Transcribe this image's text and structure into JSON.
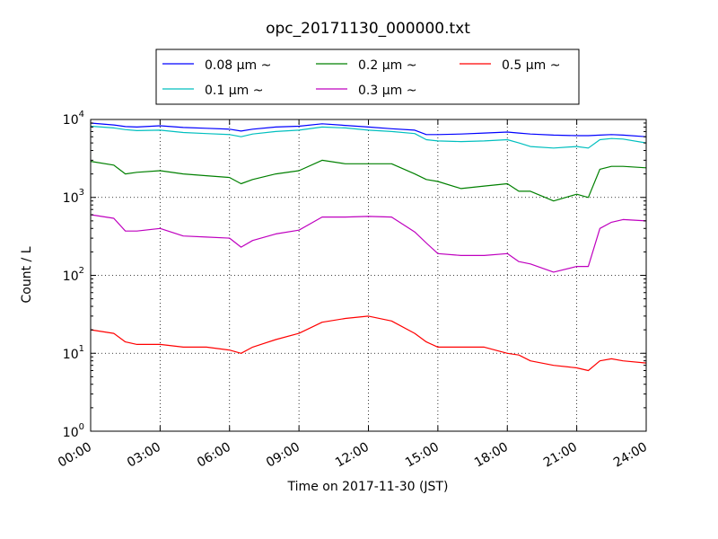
{
  "chart_data": {
    "type": "line",
    "title": "opc_20171130_000000.txt",
    "xlabel": "Time on 2017-11-30 (JST)",
    "ylabel": "Count / L",
    "x_ticks": [
      "00:00",
      "03:00",
      "06:00",
      "09:00",
      "12:00",
      "15:00",
      "18:00",
      "21:00",
      "24:00"
    ],
    "y_ticks": [
      {
        "base": "10",
        "exp": "0"
      },
      {
        "base": "10",
        "exp": "1"
      },
      {
        "base": "10",
        "exp": "2"
      },
      {
        "base": "10",
        "exp": "3"
      },
      {
        "base": "10",
        "exp": "4"
      }
    ],
    "xlim_hours": [
      0,
      24
    ],
    "ylim": [
      1,
      10000
    ],
    "yscale": "log",
    "grid": true,
    "legend": "top-center outside",
    "x_hours": [
      0,
      1,
      1.5,
      2,
      3,
      4,
      5,
      6,
      6.5,
      7,
      8,
      9,
      10,
      11,
      12,
      13,
      14,
      14.5,
      15,
      16,
      17,
      18,
      18.5,
      19,
      20,
      21,
      21.5,
      22,
      22.5,
      23,
      24
    ],
    "series": [
      {
        "name": "0.08 μm ~",
        "color": "#0000ff",
        "values": [
          9000,
          8500,
          8100,
          8000,
          8300,
          7900,
          7700,
          7500,
          7100,
          7500,
          8000,
          8200,
          8800,
          8400,
          8000,
          7600,
          7300,
          6400,
          6400,
          6500,
          6700,
          6900,
          6700,
          6500,
          6300,
          6200,
          6200,
          6300,
          6400,
          6300,
          6000
        ]
      },
      {
        "name": "0.1 μm ~",
        "color": "#00bfbf",
        "values": [
          8200,
          7800,
          7400,
          7200,
          7300,
          6800,
          6600,
          6400,
          6000,
          6500,
          7000,
          7300,
          8000,
          7800,
          7300,
          7000,
          6600,
          5500,
          5300,
          5200,
          5300,
          5500,
          5000,
          4500,
          4300,
          4500,
          4300,
          5500,
          5700,
          5600,
          5000
        ]
      },
      {
        "name": "0.2 μm ~",
        "color": "#008000",
        "values": [
          2900,
          2600,
          2000,
          2100,
          2200,
          2000,
          1900,
          1800,
          1500,
          1700,
          2000,
          2200,
          3000,
          2700,
          2700,
          2700,
          2000,
          1700,
          1600,
          1300,
          1400,
          1500,
          1200,
          1200,
          900,
          1100,
          1000,
          2300,
          2500,
          2500,
          2400
        ]
      },
      {
        "name": "0.3 μm ~",
        "color": "#bf00bf",
        "values": [
          600,
          540,
          370,
          370,
          400,
          320,
          310,
          300,
          230,
          280,
          340,
          380,
          560,
          560,
          570,
          560,
          360,
          260,
          190,
          180,
          180,
          190,
          150,
          140,
          110,
          130,
          130,
          400,
          480,
          520,
          500
        ]
      },
      {
        "name": "0.5 μm ~",
        "color": "#ff0000",
        "values": [
          20,
          18,
          14,
          13,
          13,
          12,
          12,
          11,
          10,
          12,
          15,
          18,
          25,
          28,
          30,
          26,
          18,
          14,
          12,
          12,
          12,
          10,
          9.5,
          8,
          7,
          6.5,
          6,
          8,
          8.5,
          8,
          7.5
        ]
      }
    ]
  }
}
